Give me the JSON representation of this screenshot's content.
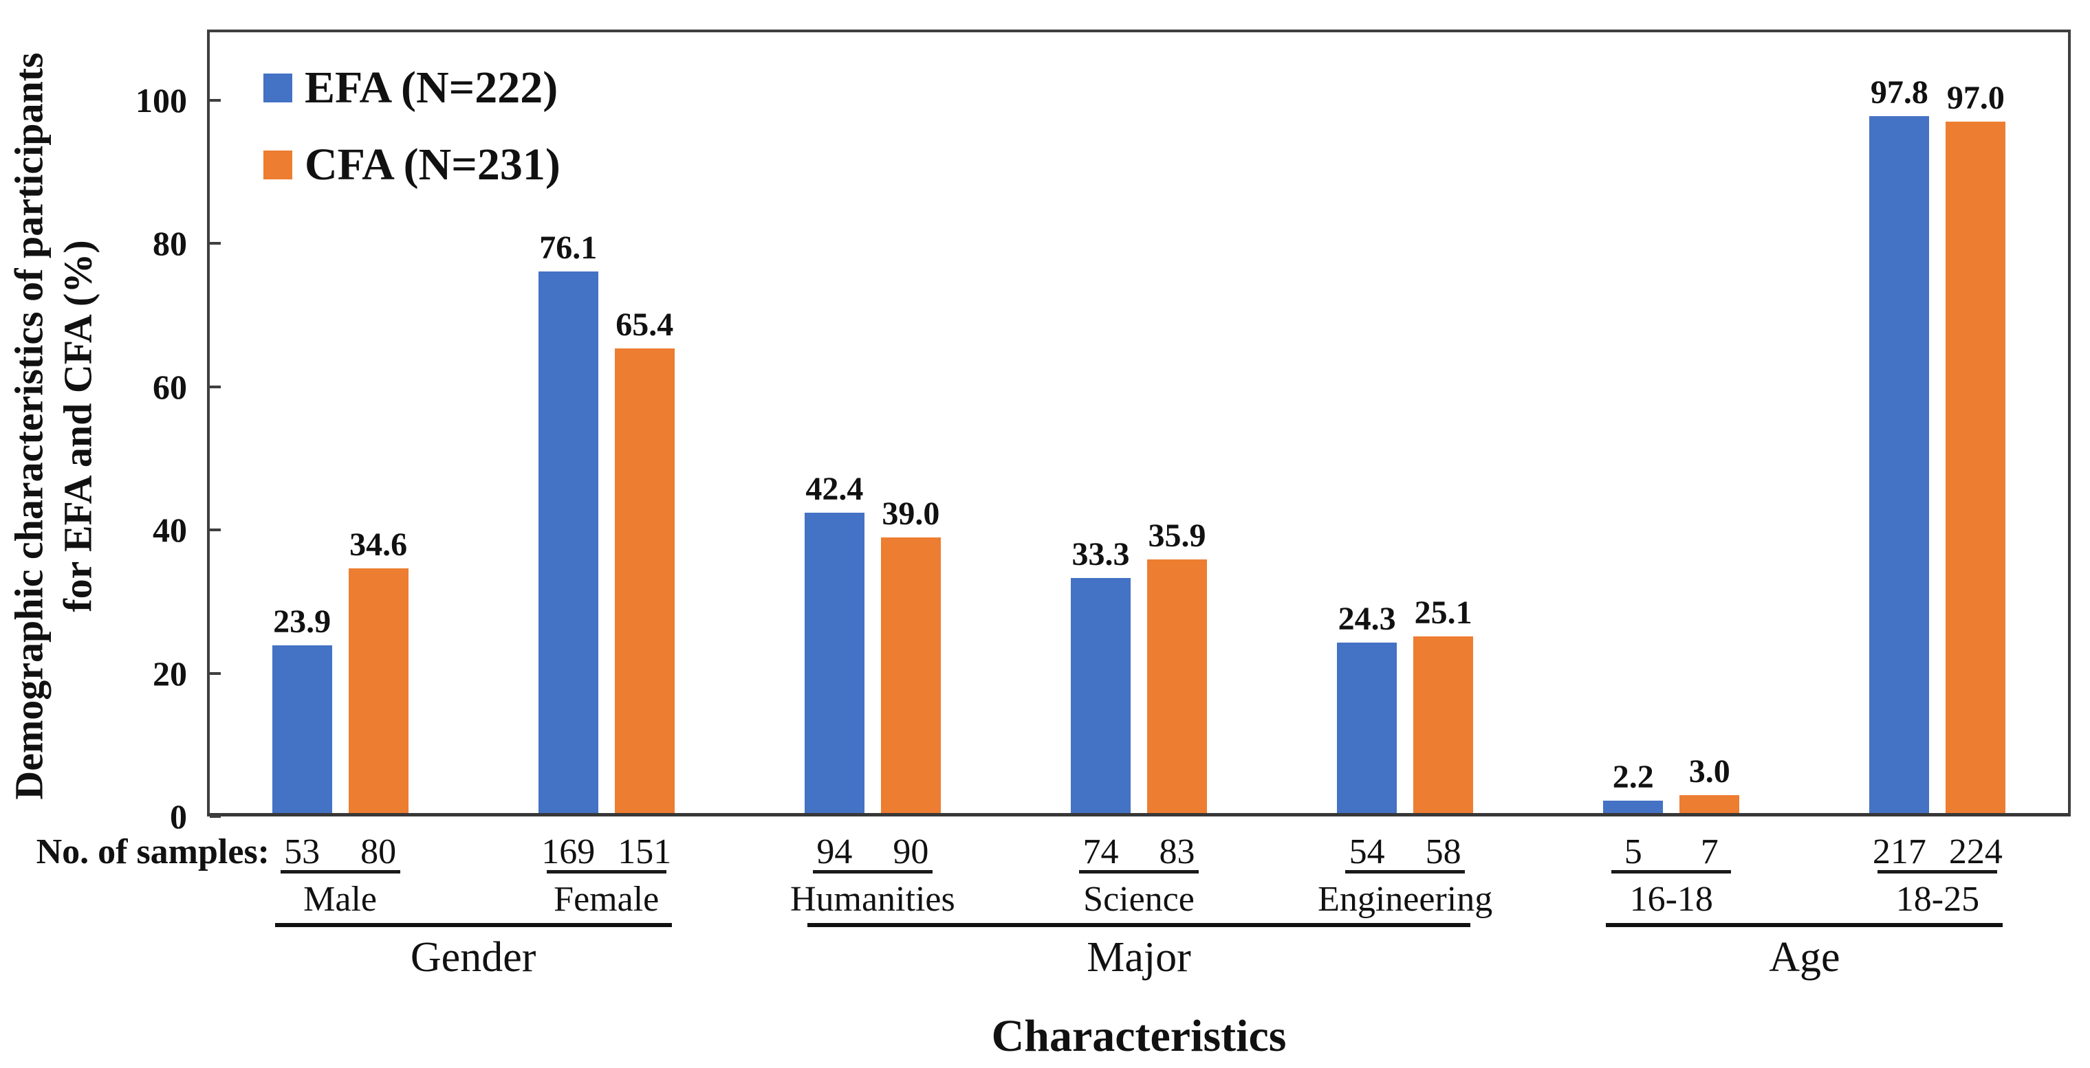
{
  "chart_data": {
    "type": "bar",
    "title": "",
    "xlabel": "Characteristics",
    "ylabel": "Demographic characteristics of participants\nfor EFA and CFA (%)",
    "ylim": [
      0,
      110
    ],
    "yticks": [
      0,
      20,
      40,
      60,
      80,
      100
    ],
    "grid": false,
    "legend_position": "top-left-inside",
    "samples_row_label": "No. of samples:",
    "categories": [
      "Male",
      "Female",
      "Humanities",
      "Science",
      "Engineering",
      "16-18",
      "18-25"
    ],
    "category_groups": [
      {
        "label": "Gender",
        "categories": [
          "Male",
          "Female"
        ]
      },
      {
        "label": "Major",
        "categories": [
          "Humanities",
          "Science",
          "Engineering"
        ]
      },
      {
        "label": "Age",
        "categories": [
          "16-18",
          "18-25"
        ]
      }
    ],
    "series": [
      {
        "name": "EFA (N=222)",
        "color": "#4472C4",
        "values": [
          23.9,
          76.1,
          42.4,
          33.3,
          24.3,
          2.2,
          97.8
        ],
        "sample_counts": [
          53,
          169,
          94,
          74,
          54,
          5,
          217
        ]
      },
      {
        "name": "CFA (N=231)",
        "color": "#ED7D31",
        "values": [
          34.6,
          65.4,
          39.0,
          35.9,
          25.1,
          3.0,
          97.0
        ],
        "sample_counts": [
          80,
          151,
          90,
          83,
          58,
          7,
          224
        ]
      }
    ],
    "axis_color": "#3f3f3f",
    "text_color": "#111111"
  }
}
